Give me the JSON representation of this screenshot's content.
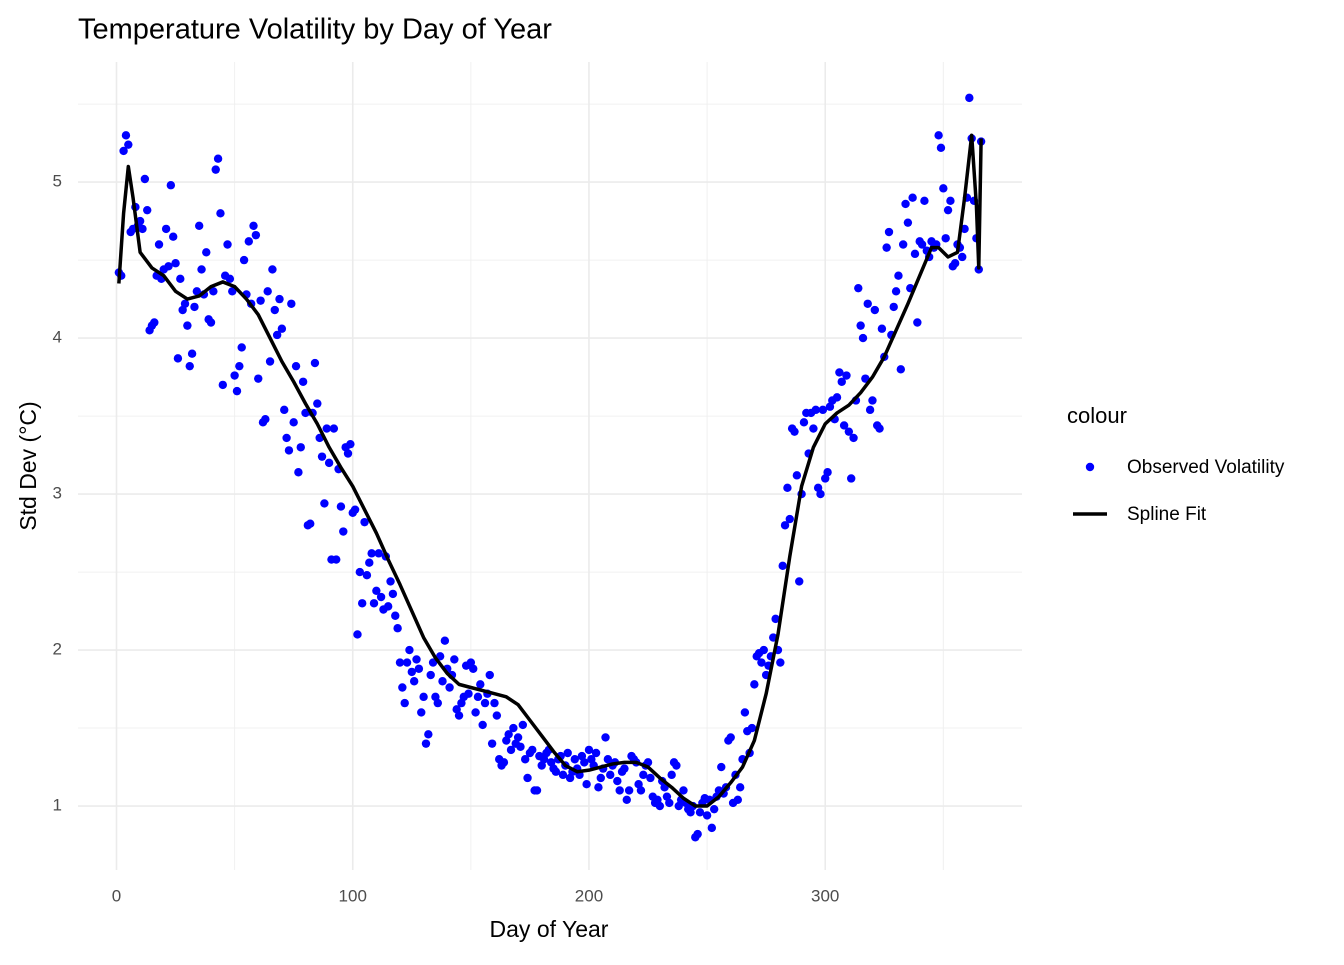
{
  "chart_data": {
    "type": "scatter",
    "title": "Temperature Volatility by Day of Year",
    "x_label": "Day of Year",
    "y_label": "Std Dev (°C)",
    "legend_title": "colour",
    "xlim": [
      -16.3,
      383.3
    ],
    "ylim": [
      0.59,
      5.77
    ],
    "xticks": [
      0,
      100,
      200,
      300
    ],
    "yticks": [
      1,
      2,
      3,
      4,
      5
    ],
    "grid": true,
    "minor_grid": true,
    "series": [
      {
        "name": "Observed Volatility",
        "type": "scatter",
        "color": "#0000ff",
        "x": [
          1,
          2,
          3,
          4,
          5,
          6,
          7,
          8,
          9,
          10,
          11,
          12,
          13,
          14,
          15,
          16,
          17,
          18,
          19,
          20,
          21,
          22,
          23,
          24,
          25,
          26,
          27,
          28,
          29,
          30,
          31,
          32,
          33,
          34,
          35,
          36,
          37,
          38,
          39,
          40,
          41,
          42,
          43,
          44,
          45,
          46,
          47,
          48,
          49,
          50,
          51,
          52,
          53,
          54,
          55,
          56,
          57,
          58,
          59,
          60,
          61,
          62,
          63,
          64,
          65,
          66,
          67,
          68,
          69,
          70,
          71,
          72,
          73,
          74,
          75,
          76,
          77,
          78,
          79,
          80,
          81,
          82,
          83,
          84,
          85,
          86,
          87,
          88,
          89,
          90,
          91,
          92,
          93,
          94,
          95,
          96,
          97,
          98,
          99,
          100,
          101,
          102,
          103,
          104,
          105,
          106,
          107,
          108,
          109,
          110,
          111,
          112,
          113,
          114,
          115,
          116,
          117,
          118,
          119,
          120,
          121,
          122,
          123,
          124,
          125,
          126,
          127,
          128,
          129,
          130,
          131,
          132,
          133,
          134,
          135,
          136,
          137,
          138,
          139,
          140,
          141,
          142,
          143,
          144,
          145,
          146,
          147,
          148,
          149,
          150,
          151,
          152,
          153,
          154,
          155,
          156,
          157,
          158,
          159,
          160,
          161,
          162,
          163,
          164,
          165,
          166,
          167,
          168,
          169,
          170,
          171,
          172,
          173,
          174,
          175,
          176,
          177,
          178,
          179,
          180,
          181,
          182,
          183,
          184,
          185,
          186,
          187,
          188,
          189,
          190,
          191,
          192,
          193,
          194,
          195,
          196,
          197,
          198,
          199,
          200,
          201,
          202,
          203,
          204,
          205,
          206,
          207,
          208,
          209,
          210,
          211,
          212,
          213,
          214,
          215,
          216,
          217,
          218,
          219,
          220,
          221,
          222,
          223,
          224,
          225,
          226,
          227,
          228,
          229,
          230,
          231,
          232,
          233,
          234,
          235,
          236,
          237,
          238,
          239,
          240,
          241,
          242,
          243,
          244,
          245,
          246,
          247,
          248,
          249,
          250,
          251,
          252,
          253,
          254,
          255,
          256,
          257,
          258,
          259,
          260,
          261,
          262,
          263,
          264,
          265,
          266,
          267,
          268,
          269,
          270,
          271,
          272,
          273,
          274,
          275,
          276,
          277,
          278,
          279,
          280,
          281,
          282,
          283,
          284,
          285,
          286,
          287,
          288,
          289,
          290,
          291,
          292,
          293,
          294,
          295,
          296,
          297,
          298,
          299,
          300,
          301,
          302,
          303,
          304,
          305,
          306,
          307,
          308,
          309,
          310,
          311,
          312,
          313,
          314,
          315,
          316,
          317,
          318,
          319,
          320,
          321,
          322,
          323,
          324,
          325,
          326,
          327,
          328,
          329,
          330,
          331,
          332,
          333,
          334,
          335,
          336,
          337,
          338,
          339,
          340,
          341,
          342,
          343,
          344,
          345,
          346,
          347,
          348,
          349,
          350,
          351,
          352,
          353,
          354,
          355,
          356,
          357,
          358,
          359,
          360,
          361,
          362,
          363,
          364,
          365,
          366
        ],
        "values": [
          4.42,
          4.4,
          5.2,
          5.3,
          5.24,
          4.68,
          4.7,
          4.84,
          4.72,
          4.75,
          4.7,
          5.02,
          4.82,
          4.05,
          4.08,
          4.1,
          4.4,
          4.6,
          4.38,
          4.44,
          4.7,
          4.46,
          4.98,
          4.65,
          4.48,
          3.87,
          4.38,
          4.18,
          4.22,
          4.08,
          3.82,
          3.9,
          4.2,
          4.3,
          4.72,
          4.44,
          4.28,
          4.55,
          4.12,
          4.1,
          4.3,
          5.08,
          5.15,
          4.8,
          3.7,
          4.4,
          4.6,
          4.38,
          4.3,
          3.76,
          3.66,
          3.82,
          3.94,
          4.5,
          4.28,
          4.62,
          4.22,
          4.72,
          4.66,
          3.74,
          4.24,
          3.46,
          3.48,
          4.3,
          3.85,
          4.44,
          4.18,
          4.02,
          4.25,
          4.06,
          3.54,
          3.36,
          3.28,
          4.22,
          3.46,
          3.82,
          3.14,
          3.3,
          3.72,
          3.52,
          2.8,
          2.81,
          3.52,
          3.84,
          3.58,
          3.36,
          3.24,
          2.94,
          3.42,
          3.2,
          2.58,
          3.42,
          2.58,
          3.16,
          2.92,
          2.76,
          3.3,
          3.26,
          3.32,
          2.88,
          2.9,
          2.1,
          2.5,
          2.3,
          2.82,
          2.48,
          2.56,
          2.62,
          2.3,
          2.38,
          2.62,
          2.34,
          2.26,
          2.6,
          2.28,
          2.44,
          2.36,
          2.22,
          2.14,
          1.92,
          1.76,
          1.66,
          1.92,
          2.0,
          1.86,
          1.8,
          1.94,
          1.88,
          1.6,
          1.7,
          1.4,
          1.46,
          1.84,
          1.92,
          1.7,
          1.66,
          1.96,
          1.8,
          2.06,
          1.88,
          1.76,
          1.84,
          1.94,
          1.62,
          1.58,
          1.66,
          1.7,
          1.9,
          1.72,
          1.92,
          1.88,
          1.6,
          1.7,
          1.78,
          1.52,
          1.66,
          1.72,
          1.84,
          1.4,
          1.66,
          1.58,
          1.3,
          1.26,
          1.28,
          1.42,
          1.46,
          1.36,
          1.5,
          1.4,
          1.44,
          1.38,
          1.52,
          1.3,
          1.18,
          1.34,
          1.36,
          1.1,
          1.1,
          1.32,
          1.26,
          1.3,
          1.34,
          1.36,
          1.28,
          1.24,
          1.22,
          1.3,
          1.32,
          1.2,
          1.26,
          1.34,
          1.18,
          1.22,
          1.3,
          1.24,
          1.2,
          1.32,
          1.28,
          1.14,
          1.36,
          1.3,
          1.26,
          1.34,
          1.12,
          1.18,
          1.24,
          1.44,
          1.3,
          1.2,
          1.26,
          1.28,
          1.16,
          1.1,
          1.22,
          1.24,
          1.04,
          1.1,
          1.32,
          1.3,
          1.28,
          1.14,
          1.1,
          1.2,
          1.26,
          1.28,
          1.18,
          1.06,
          1.02,
          1.04,
          1.0,
          1.16,
          1.12,
          1.06,
          1.02,
          1.2,
          1.28,
          1.26,
          1.0,
          1.04,
          1.1,
          1.02,
          0.98,
          0.96,
          1.0,
          0.8,
          0.82,
          0.96,
          1.02,
          1.05,
          0.94,
          1.04,
          0.86,
          0.98,
          1.06,
          1.1,
          1.25,
          1.08,
          1.12,
          1.42,
          1.44,
          1.02,
          1.2,
          1.04,
          1.12,
          1.3,
          1.6,
          1.48,
          1.34,
          1.5,
          1.78,
          1.96,
          1.98,
          1.92,
          2.0,
          1.84,
          1.9,
          1.96,
          2.08,
          2.2,
          2.0,
          1.92,
          2.54,
          2.8,
          3.04,
          2.84,
          3.42,
          3.4,
          3.12,
          2.44,
          3.0,
          3.46,
          3.52,
          3.26,
          3.52,
          3.42,
          3.54,
          3.04,
          3.0,
          3.54,
          3.1,
          3.14,
          3.56,
          3.6,
          3.48,
          3.62,
          3.78,
          3.72,
          3.44,
          3.76,
          3.4,
          3.1,
          3.36,
          3.6,
          4.32,
          4.08,
          4.0,
          3.74,
          4.22,
          3.54,
          3.6,
          4.18,
          3.44,
          3.42,
          4.06,
          3.88,
          4.58,
          4.68,
          4.02,
          4.2,
          4.3,
          4.4,
          3.8,
          4.6,
          4.86,
          4.74,
          4.32,
          4.9,
          4.54,
          4.1,
          4.62,
          4.6,
          4.88,
          4.56,
          4.52,
          4.62,
          4.58,
          4.6,
          5.3,
          5.22,
          4.96,
          4.64,
          4.82,
          4.88,
          4.46,
          4.48,
          4.6,
          4.58,
          4.52,
          4.7,
          4.9,
          5.54,
          5.28,
          4.88,
          4.64,
          4.44,
          5.26
        ]
      },
      {
        "name": "Spline Fit",
        "type": "line",
        "color": "#000000",
        "x": [
          1,
          3,
          5,
          7,
          10,
          15,
          20,
          25,
          30,
          35,
          40,
          45,
          50,
          55,
          60,
          65,
          70,
          75,
          80,
          85,
          90,
          95,
          100,
          105,
          110,
          115,
          120,
          125,
          130,
          135,
          140,
          145,
          150,
          155,
          160,
          165,
          170,
          175,
          180,
          185,
          190,
          195,
          200,
          205,
          210,
          215,
          220,
          225,
          230,
          235,
          240,
          245,
          250,
          255,
          260,
          265,
          270,
          275,
          280,
          285,
          290,
          295,
          300,
          305,
          310,
          315,
          320,
          325,
          330,
          335,
          340,
          345,
          348,
          352,
          356,
          359,
          362,
          364,
          365,
          366
        ],
        "values": [
          4.35,
          4.8,
          5.1,
          4.9,
          4.55,
          4.45,
          4.4,
          4.3,
          4.25,
          4.27,
          4.33,
          4.36,
          4.33,
          4.25,
          4.15,
          4.0,
          3.85,
          3.72,
          3.58,
          3.45,
          3.3,
          3.17,
          3.05,
          2.9,
          2.75,
          2.58,
          2.42,
          2.25,
          2.08,
          1.95,
          1.85,
          1.78,
          1.76,
          1.74,
          1.72,
          1.7,
          1.65,
          1.55,
          1.45,
          1.35,
          1.26,
          1.22,
          1.23,
          1.25,
          1.27,
          1.28,
          1.28,
          1.25,
          1.18,
          1.12,
          1.05,
          1.0,
          1.0,
          1.06,
          1.15,
          1.25,
          1.42,
          1.72,
          2.1,
          2.6,
          3.05,
          3.3,
          3.45,
          3.52,
          3.57,
          3.65,
          3.75,
          3.88,
          4.05,
          4.22,
          4.4,
          4.58,
          4.58,
          4.52,
          4.55,
          4.9,
          5.3,
          4.85,
          4.45,
          5.28
        ]
      }
    ]
  }
}
